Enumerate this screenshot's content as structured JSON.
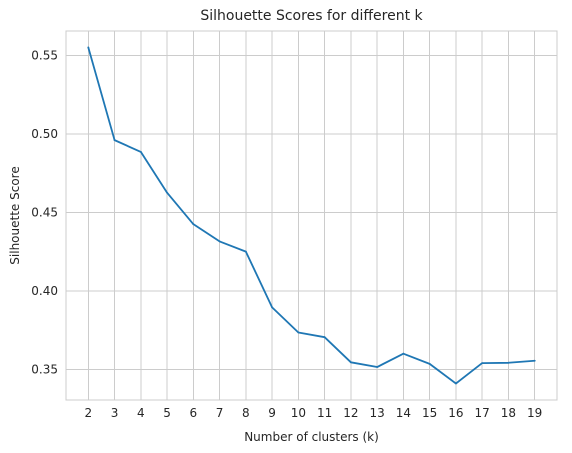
{
  "chart_data": {
    "type": "line",
    "title": "Silhouette Scores for different k",
    "xlabel": "Number of clusters (k)",
    "ylabel": "Silhouette Score",
    "x": [
      2,
      3,
      4,
      5,
      6,
      7,
      8,
      9,
      10,
      11,
      12,
      13,
      14,
      15,
      16,
      17,
      18,
      19
    ],
    "xticks": [
      2,
      3,
      4,
      5,
      6,
      7,
      8,
      9,
      10,
      11,
      12,
      13,
      14,
      15,
      16,
      17,
      18,
      19
    ],
    "xlim": [
      1.15,
      19.85
    ],
    "yticks": [
      0.35,
      0.4,
      0.45,
      0.5,
      0.55
    ],
    "ytick_labels": [
      "0.35",
      "0.40",
      "0.45",
      "0.50",
      "0.55"
    ],
    "ylim": [
      0.3305,
      0.5655
    ],
    "grid": true,
    "series": [
      {
        "color": "#1f77b4",
        "values": [
          0.555,
          0.496,
          0.4885,
          0.4625,
          0.4425,
          0.4315,
          0.425,
          0.3895,
          0.3735,
          0.3705,
          0.3545,
          0.3515,
          0.36,
          0.3535,
          0.341,
          0.354,
          0.3542,
          0.3555
        ]
      }
    ]
  }
}
